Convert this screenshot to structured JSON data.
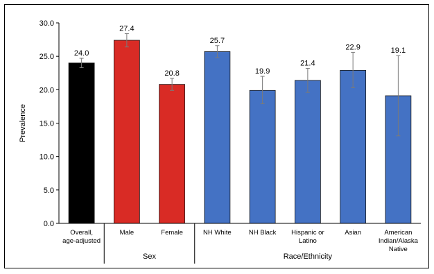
{
  "chart_data": {
    "type": "bar",
    "ylabel": "Prevalence",
    "ylim": [
      0,
      30
    ],
    "yticks": [
      "0.0",
      "5.0",
      "10.0",
      "15.0",
      "20.0",
      "25.0",
      "30.0"
    ],
    "grid": false,
    "categories": [
      [
        "Overall,",
        "age-adjusted"
      ],
      [
        "Male"
      ],
      [
        "Female"
      ],
      [
        "NH White"
      ],
      [
        "NH Black"
      ],
      [
        "Hispanic or",
        "Latino"
      ],
      [
        "Asian"
      ],
      [
        "American",
        "Indian/Alaska",
        "Native"
      ]
    ],
    "values": [
      24.0,
      27.4,
      20.8,
      25.7,
      19.9,
      21.4,
      22.9,
      19.1
    ],
    "value_labels": [
      "24.0",
      "27.4",
      "20.8",
      "25.7",
      "19.9",
      "21.4",
      "22.9",
      "19.1"
    ],
    "error_low": [
      23.3,
      26.4,
      19.9,
      24.8,
      17.9,
      19.6,
      20.3,
      13.1
    ],
    "error_high": [
      24.7,
      28.4,
      21.7,
      26.6,
      22.0,
      23.2,
      25.6,
      25.1
    ],
    "colors": [
      "#000000",
      "#d92b25",
      "#d92b25",
      "#4472c4",
      "#4472c4",
      "#4472c4",
      "#4472c4",
      "#4472c4"
    ],
    "groups": [
      {
        "label": "Sex",
        "start": 1,
        "end": 2
      },
      {
        "label": "Race/Ethnicity",
        "start": 3,
        "end": 7
      }
    ]
  }
}
